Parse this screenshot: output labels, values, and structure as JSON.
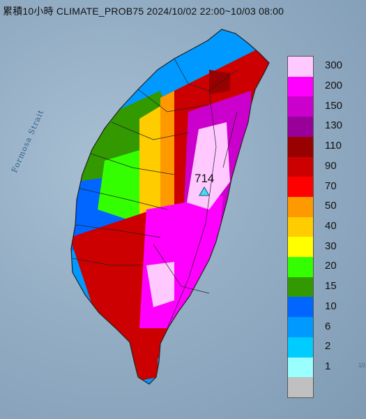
{
  "title": "累積10小時 CLIMATE_PROB75 2024/10/02 22:00~10/03 08:00",
  "sea_label": "Formosa Strait",
  "edge_digit": "10",
  "max_value": "714",
  "max_marker": "triangle-marker",
  "legend": [
    {
      "label": "300",
      "color": "#ffc8ff"
    },
    {
      "label": "200",
      "color": "#ff00ff"
    },
    {
      "label": "150",
      "color": "#cc00cc"
    },
    {
      "label": "130",
      "color": "#99009a"
    },
    {
      "label": "110",
      "color": "#990000"
    },
    {
      "label": "90",
      "color": "#cc0000"
    },
    {
      "label": "70",
      "color": "#ff0000"
    },
    {
      "label": "50",
      "color": "#ff9900"
    },
    {
      "label": "40",
      "color": "#ffcc00"
    },
    {
      "label": "30",
      "color": "#ffff00"
    },
    {
      "label": "20",
      "color": "#33ff00"
    },
    {
      "label": "15",
      "color": "#339900"
    },
    {
      "label": "10",
      "color": "#0066ff"
    },
    {
      "label": "6",
      "color": "#0099ff"
    },
    {
      "label": "2",
      "color": "#00ccff"
    },
    {
      "label": "1",
      "color": "#99ffff"
    },
    {
      "label": "",
      "color": "#c0c0c0"
    }
  ]
}
